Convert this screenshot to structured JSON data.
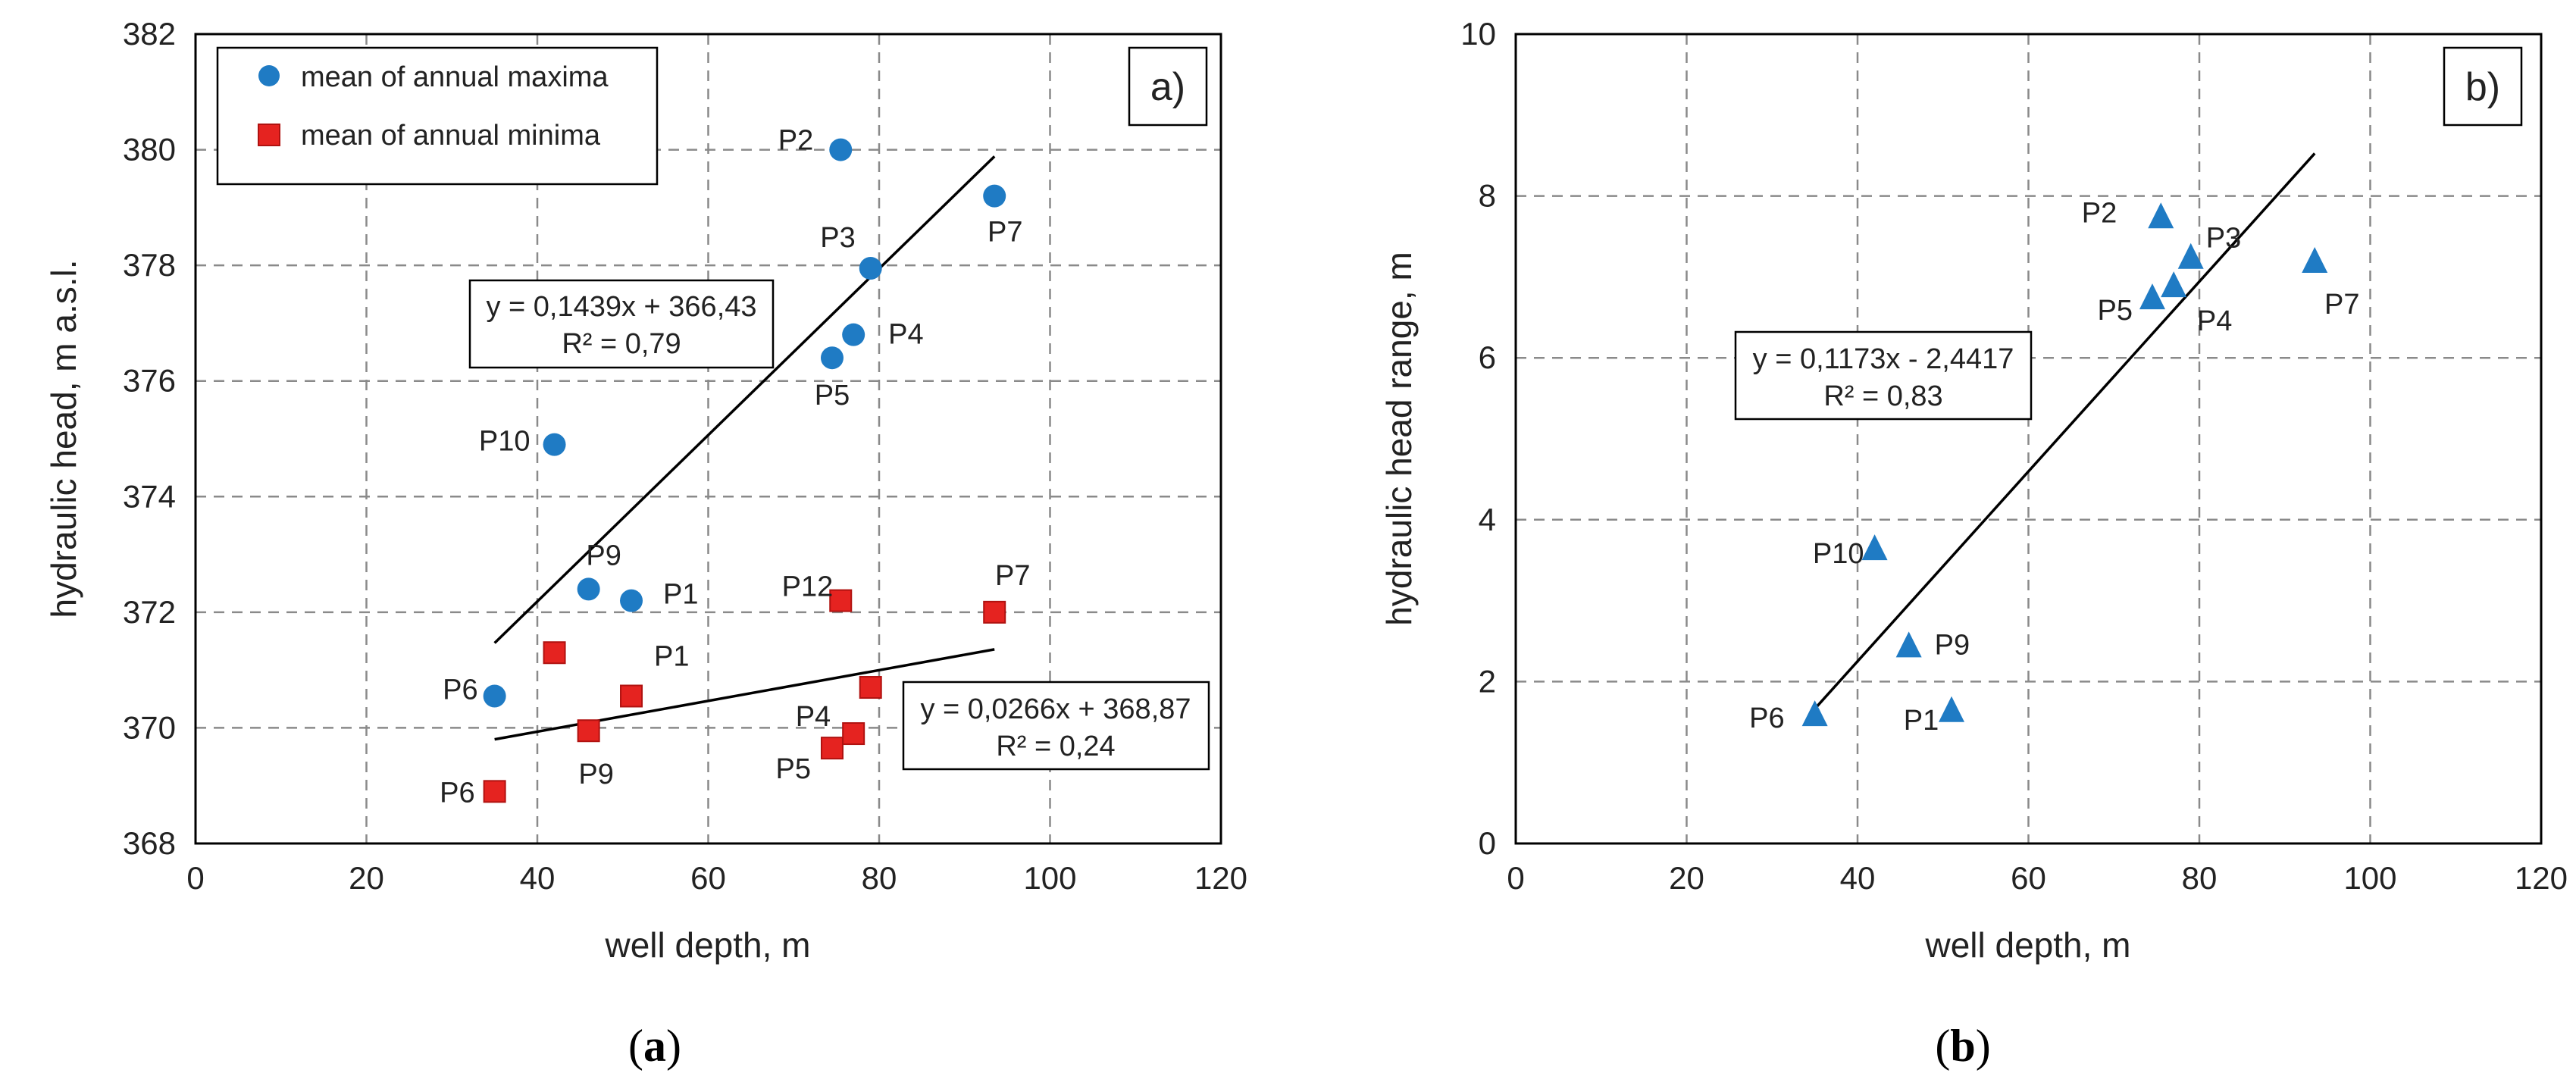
{
  "colors": {
    "maxima": "#1f7bc4",
    "minima": "#e52320",
    "minima_edge": "#b01210",
    "grid": "#8a8a8a",
    "line": "#000000"
  },
  "chart_data": [
    {
      "type": "scatter",
      "panel_label": "a)",
      "caption": {
        "open": "(",
        "letter": "a",
        "close": ")"
      },
      "xlabel": "well depth, m",
      "ylabel": "hydraulic head, m a.s.l.",
      "xlim": [
        0,
        120
      ],
      "ylim": [
        368,
        382
      ],
      "x_ticks": [
        "0",
        "20",
        "40",
        "60",
        "80",
        "100",
        "120"
      ],
      "y_ticks": [
        "368",
        "370",
        "372",
        "374",
        "376",
        "378",
        "380",
        "382"
      ],
      "grid": true,
      "legend_position": "top-left",
      "series": [
        {
          "name": "mean of annual maxima",
          "marker": "circle",
          "points": [
            {
              "label": "P1",
              "x": 51,
              "y": 372.2
            },
            {
              "label": "P2",
              "x": 75.5,
              "y": 380.0
            },
            {
              "label": "P3",
              "x": 79,
              "y": 377.95
            },
            {
              "label": "P4",
              "x": 77,
              "y": 376.8
            },
            {
              "label": "P5",
              "x": 74.5,
              "y": 376.4
            },
            {
              "label": "P6",
              "x": 35,
              "y": 370.55
            },
            {
              "label": "P7",
              "x": 93.5,
              "y": 379.2
            },
            {
              "label": "P9",
              "x": 46,
              "y": 372.4
            },
            {
              "label": "P10",
              "x": 42,
              "y": 374.9
            }
          ]
        },
        {
          "name": "mean of annual minima",
          "marker": "square",
          "points": [
            {
              "label": "P1",
              "x": 51,
              "y": 370.55
            },
            {
              "label": "P4",
              "x": 77,
              "y": 369.9
            },
            {
              "label": "P5",
              "x": 74.5,
              "y": 369.65
            },
            {
              "label": "P6",
              "x": 35,
              "y": 368.9
            },
            {
              "label": "P7",
              "x": 93.5,
              "y": 372.0
            },
            {
              "label": "P9",
              "x": 46,
              "y": 369.95
            },
            {
              "label": "P12",
              "x": 75.5,
              "y": 372.2
            },
            {
              "label": "",
              "x": 42,
              "y": 371.3
            },
            {
              "label": "",
              "x": 79,
              "y": 370.7
            }
          ]
        }
      ],
      "trendlines": [
        {
          "slope": 0.1439,
          "intercept": 366.43,
          "x_range": [
            35,
            93.5
          ],
          "equation": "y = 0,1439x + 366,43",
          "r2": "R² = 0,79"
        },
        {
          "slope": 0.0266,
          "intercept": 368.87,
          "x_range": [
            35,
            93.5
          ],
          "equation": "y = 0,0266x + 368,87",
          "r2": "R² = 0,24"
        }
      ]
    },
    {
      "type": "scatter",
      "panel_label": "b)",
      "caption": {
        "open": "(",
        "letter": "b",
        "close": ")"
      },
      "xlabel": "well depth, m",
      "ylabel": "hydraulic head range, m",
      "xlim": [
        0,
        120
      ],
      "ylim": [
        0,
        10
      ],
      "x_ticks": [
        "0",
        "20",
        "40",
        "60",
        "80",
        "100",
        "120"
      ],
      "y_ticks": [
        "0",
        "2",
        "4",
        "6",
        "8",
        "10"
      ],
      "grid": true,
      "series": [
        {
          "name": "hydraulic head range",
          "marker": "triangle",
          "points": [
            {
              "label": "P1",
              "x": 51,
              "y": 1.65
            },
            {
              "label": "P2",
              "x": 75.5,
              "y": 7.75
            },
            {
              "label": "P3",
              "x": 79,
              "y": 7.25
            },
            {
              "label": "P4",
              "x": 77,
              "y": 6.9
            },
            {
              "label": "P5",
              "x": 74.5,
              "y": 6.75
            },
            {
              "label": "P6",
              "x": 35,
              "y": 1.6
            },
            {
              "label": "P7",
              "x": 93.5,
              "y": 7.2
            },
            {
              "label": "P9",
              "x": 46,
              "y": 2.45
            },
            {
              "label": "P10",
              "x": 42,
              "y": 3.65
            }
          ]
        }
      ],
      "trendlines": [
        {
          "slope": 0.1173,
          "intercept": -2.4417,
          "x_range": [
            35,
            93.5
          ],
          "equation": "y = 0,1173x - 2,4417",
          "r2": "R² = 0,83"
        }
      ]
    }
  ]
}
